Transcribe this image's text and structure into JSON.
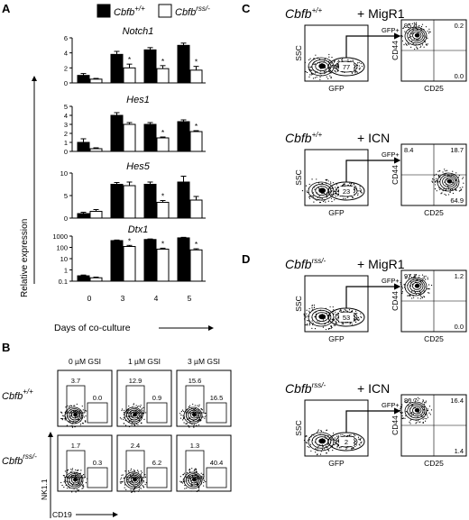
{
  "panels": {
    "A": "A",
    "B": "B",
    "C": "C",
    "D": "D"
  },
  "legend": {
    "wt_base": "Cbfb",
    "wt_sup": "+/+",
    "ko_base": "Cbfb",
    "ko_sup": "rss/-",
    "colors": {
      "wt": "#000000",
      "ko": "#ffffff"
    }
  },
  "panelA": {
    "ylabel": "Relative expression",
    "xlabel": "Days of co-culture",
    "star": "*"
  },
  "chart_data": [
    {
      "type": "bar",
      "title": "Notch1",
      "categories": [
        "0",
        "3",
        "4",
        "5"
      ],
      "series": [
        {
          "name": "Cbfb+/+",
          "values": [
            1.0,
            3.8,
            4.4,
            5.0
          ],
          "errors": [
            0.25,
            0.4,
            0.3,
            0.3
          ]
        },
        {
          "name": "Cbfb rss/-",
          "values": [
            0.5,
            2.0,
            1.9,
            1.7
          ],
          "errors": [
            0.1,
            0.5,
            0.4,
            0.5
          ]
        }
      ],
      "ylim": [
        0,
        6
      ],
      "yticks": [
        "0",
        "2",
        "4",
        "6"
      ],
      "significant": [
        false,
        true,
        true,
        true
      ]
    },
    {
      "type": "bar",
      "title": "Hes1",
      "categories": [
        "0",
        "3",
        "4",
        "5"
      ],
      "series": [
        {
          "name": "Cbfb+/+",
          "values": [
            1.0,
            4.0,
            3.0,
            3.3
          ],
          "errors": [
            0.4,
            0.3,
            0.2,
            0.2
          ]
        },
        {
          "name": "Cbfb rss/-",
          "values": [
            0.3,
            3.0,
            1.5,
            2.2
          ],
          "errors": [
            0.1,
            0.2,
            0.1,
            0.1
          ]
        }
      ],
      "ylim": [
        0,
        5
      ],
      "yticks": [
        "0",
        "1",
        "2",
        "3",
        "4",
        "5"
      ],
      "significant": [
        false,
        false,
        true,
        true
      ]
    },
    {
      "type": "bar",
      "title": "Hes5",
      "categories": [
        "0",
        "3",
        "4",
        "5"
      ],
      "series": [
        {
          "name": "Cbfb+/+",
          "values": [
            1.0,
            7.5,
            7.5,
            8.0
          ],
          "errors": [
            0.3,
            0.4,
            0.5,
            1.3
          ]
        },
        {
          "name": "Cbfb rss/-",
          "values": [
            1.5,
            7.2,
            3.5,
            4.0
          ],
          "errors": [
            0.4,
            0.8,
            0.4,
            0.8
          ]
        }
      ],
      "ylim": [
        0,
        10
      ],
      "yticks": [
        "0",
        "5",
        "10"
      ],
      "significant": [
        false,
        false,
        true,
        false
      ]
    },
    {
      "type": "bar",
      "title": "Dtx1",
      "categories": [
        "0",
        "3",
        "4",
        "5"
      ],
      "series": [
        {
          "name": "Cbfb+/+",
          "values": [
            0.3,
            400,
            500,
            700
          ],
          "errors": [
            0.05,
            50,
            60,
            80
          ]
        },
        {
          "name": "Cbfb rss/-",
          "values": [
            0.2,
            120,
            70,
            60
          ],
          "errors": [
            0.03,
            30,
            15,
            15
          ]
        }
      ],
      "ylim": [
        0.1,
        1000
      ],
      "log_scale": true,
      "yticks": [
        "0.1",
        "1",
        "10",
        "100",
        "1000"
      ],
      "significant": [
        false,
        true,
        true,
        true
      ]
    }
  ],
  "panelB": {
    "columns": [
      "0 µM GSI",
      "1 µM GSI",
      "3 µM GSI"
    ],
    "rows": [
      {
        "base": "Cbfb",
        "sup": "+/+",
        "values": [
          [
            "3.7",
            "0.0"
          ],
          [
            "12.9",
            "0.9"
          ],
          [
            "15.6",
            "16.5"
          ]
        ]
      },
      {
        "base": "Cbfb",
        "sup": "rss/-",
        "values": [
          [
            "1.7",
            "0.3"
          ],
          [
            "2.4",
            "6.2"
          ],
          [
            "1.3",
            "40.4"
          ]
        ]
      }
    ],
    "ylabel": "NK1.1",
    "xlabel": "CD19"
  },
  "panelC": {
    "rows": [
      {
        "geno_base": "Cbfb",
        "geno_sup": "+/+",
        "construct": "+ MigR1",
        "gate": "77",
        "q": [
          "95.6",
          "0.2",
          "0.0"
        ]
      },
      {
        "geno_base": "Cbfb",
        "geno_sup": "+/+",
        "construct": "+ ICN",
        "gate": "23",
        "q": [
          "8.4",
          "18.7",
          "64.9"
        ]
      }
    ]
  },
  "panelD": {
    "rows": [
      {
        "geno_base": "Cbfb",
        "geno_sup": "rss/-",
        "construct": "+ MigR1",
        "gate": "53",
        "q": [
          "97.7",
          "1.2",
          "0.0"
        ]
      },
      {
        "geno_base": "Cbfb",
        "geno_sup": "rss/-",
        "construct": "+ ICN",
        "gate": "2",
        "q": [
          "80.7",
          "16.4",
          "1.4"
        ]
      }
    ]
  },
  "flow_axes": {
    "ssc": "SSC",
    "gfp": "GFP",
    "cd44": "CD44",
    "cd25": "CD25",
    "gfp_pos": "GFP+"
  }
}
